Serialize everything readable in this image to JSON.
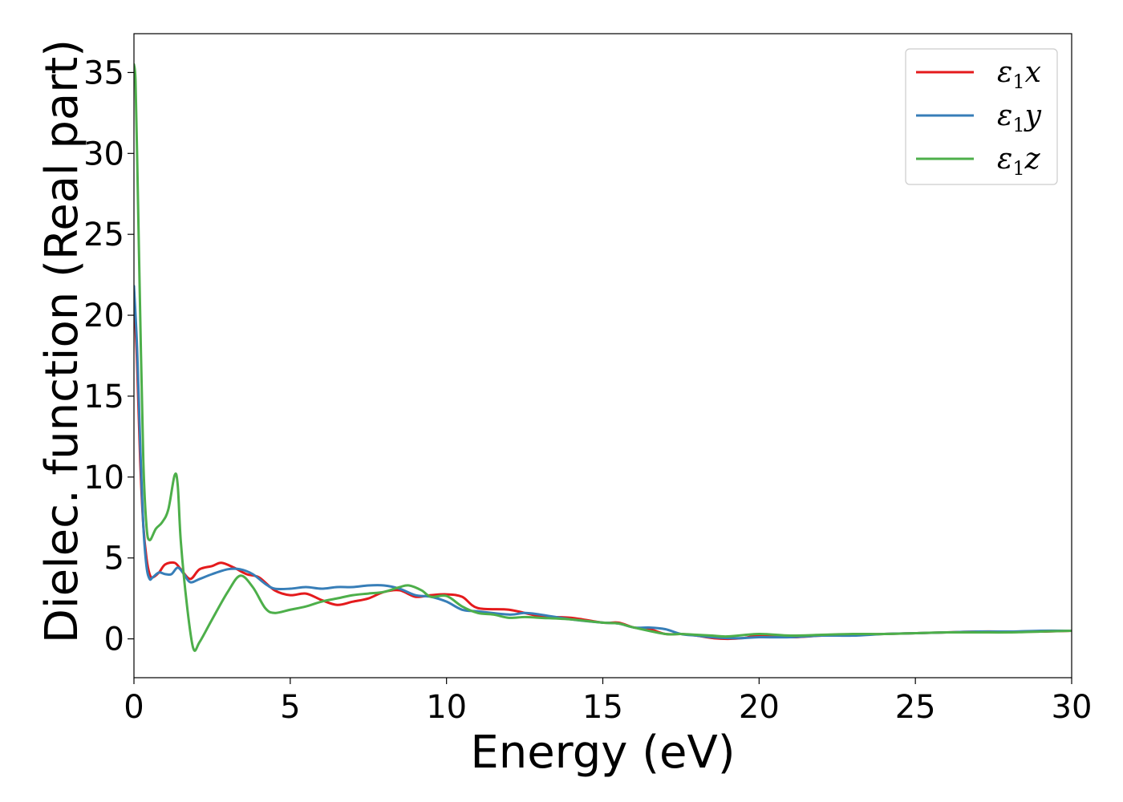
{
  "chart_data": {
    "type": "line",
    "title": "",
    "xlabel": "Energy (eV)",
    "ylabel": "Dielec. function (Real part)",
    "xlim": [
      0,
      30
    ],
    "ylim": [
      -2.4,
      37.4
    ],
    "xticks": [
      0,
      5,
      10,
      15,
      20,
      25,
      30
    ],
    "yticks": [
      0,
      5,
      10,
      15,
      20,
      25,
      30,
      35
    ],
    "grid": false,
    "legend_position": "top-right",
    "series": [
      {
        "name": "ε1x",
        "legend_base": "ε",
        "legend_sub": "1",
        "legend_var": "x",
        "color": "#e41a1c",
        "x": [
          0,
          0.1,
          0.2,
          0.3,
          0.4,
          0.5,
          0.6,
          0.8,
          1.0,
          1.3,
          1.5,
          1.8,
          2.1,
          2.5,
          2.8,
          3.2,
          3.6,
          4.0,
          4.5,
          5.0,
          5.5,
          6.0,
          6.5,
          7.0,
          7.5,
          8.0,
          8.5,
          9.0,
          9.5,
          10.0,
          10.5,
          11.0,
          12.0,
          13.0,
          14.0,
          15.0,
          15.5,
          16.0,
          16.5,
          17.0,
          17.5,
          18.0,
          18.5,
          19.0,
          19.5,
          20.0,
          21.0,
          22.0,
          23.0,
          24.0,
          25.0,
          26.0,
          27.0,
          28.0,
          29.0,
          30.0
        ],
        "y": [
          21.5,
          17.0,
          11.0,
          7.0,
          5.0,
          4.0,
          3.8,
          4.1,
          4.6,
          4.7,
          4.3,
          3.7,
          4.3,
          4.5,
          4.7,
          4.4,
          4.0,
          3.8,
          3.0,
          2.7,
          2.8,
          2.4,
          2.1,
          2.3,
          2.5,
          2.9,
          3.0,
          2.6,
          2.7,
          2.75,
          2.6,
          1.9,
          1.8,
          1.4,
          1.3,
          1.0,
          1.0,
          0.7,
          0.6,
          0.3,
          0.3,
          0.2,
          0.05,
          0.0,
          0.05,
          0.2,
          0.1,
          0.2,
          0.25,
          0.3,
          0.35,
          0.4,
          0.45,
          0.45,
          0.45,
          0.5
        ]
      },
      {
        "name": "ε1y",
        "legend_base": "ε",
        "legend_sub": "1",
        "legend_var": "y",
        "color": "#377eb8",
        "x": [
          0,
          0.1,
          0.2,
          0.3,
          0.4,
          0.5,
          0.6,
          0.8,
          1.0,
          1.2,
          1.4,
          1.6,
          1.8,
          2.1,
          2.5,
          3.0,
          3.4,
          3.8,
          4.2,
          4.5,
          5.0,
          5.5,
          6.0,
          6.5,
          7.0,
          7.5,
          8.0,
          8.5,
          9.0,
          9.5,
          10.0,
          10.5,
          11.0,
          12.0,
          12.5,
          13.0,
          14.0,
          15.0,
          15.5,
          16.0,
          16.5,
          17.0,
          17.5,
          18.0,
          18.5,
          19.0,
          19.5,
          20.0,
          21.0,
          22.0,
          23.0,
          24.0,
          25.0,
          26.0,
          27.0,
          28.0,
          29.0,
          30.0
        ],
        "y": [
          21.8,
          18.0,
          12.0,
          7.0,
          4.5,
          3.7,
          3.8,
          4.1,
          4.0,
          4.0,
          4.4,
          4.0,
          3.5,
          3.7,
          4.0,
          4.3,
          4.3,
          4.0,
          3.4,
          3.1,
          3.1,
          3.2,
          3.1,
          3.2,
          3.2,
          3.3,
          3.3,
          3.1,
          2.7,
          2.6,
          2.3,
          1.8,
          1.7,
          1.5,
          1.6,
          1.5,
          1.2,
          1.0,
          0.95,
          0.7,
          0.7,
          0.6,
          0.3,
          0.2,
          0.1,
          0.05,
          0.05,
          0.1,
          0.1,
          0.2,
          0.2,
          0.3,
          0.35,
          0.4,
          0.45,
          0.45,
          0.5,
          0.5
        ]
      },
      {
        "name": "ε1z",
        "legend_base": "ε",
        "legend_sub": "1",
        "legend_var": "z",
        "color": "#4daf4a",
        "x": [
          0,
          0.05,
          0.1,
          0.2,
          0.3,
          0.4,
          0.5,
          0.7,
          0.9,
          1.1,
          1.3,
          1.4,
          1.5,
          1.7,
          1.9,
          2.1,
          2.5,
          3.0,
          3.4,
          3.8,
          4.2,
          4.5,
          5.0,
          5.5,
          6.0,
          6.5,
          7.0,
          7.5,
          8.0,
          8.5,
          8.8,
          9.2,
          9.5,
          10.0,
          10.5,
          11.0,
          11.5,
          12.0,
          12.5,
          13.0,
          14.0,
          15.0,
          15.5,
          16.0,
          17.0,
          17.5,
          18.0,
          18.5,
          19.0,
          20.0,
          21.0,
          22.0,
          23.0,
          24.0,
          25.0,
          26.0,
          27.0,
          28.0,
          29.0,
          30.0
        ],
        "y": [
          35.5,
          34.5,
          30.0,
          20.0,
          11.0,
          7.0,
          6.1,
          6.8,
          7.2,
          8.0,
          10.1,
          9.5,
          6.0,
          2.0,
          -0.6,
          -0.2,
          1.2,
          2.9,
          3.9,
          3.2,
          1.9,
          1.6,
          1.8,
          2.0,
          2.3,
          2.5,
          2.7,
          2.8,
          2.9,
          3.2,
          3.3,
          3.0,
          2.6,
          2.65,
          2.0,
          1.6,
          1.5,
          1.3,
          1.35,
          1.3,
          1.2,
          1.0,
          0.95,
          0.7,
          0.3,
          0.3,
          0.25,
          0.2,
          0.15,
          0.3,
          0.2,
          0.25,
          0.3,
          0.3,
          0.35,
          0.4,
          0.4,
          0.4,
          0.45,
          0.5
        ]
      }
    ]
  }
}
